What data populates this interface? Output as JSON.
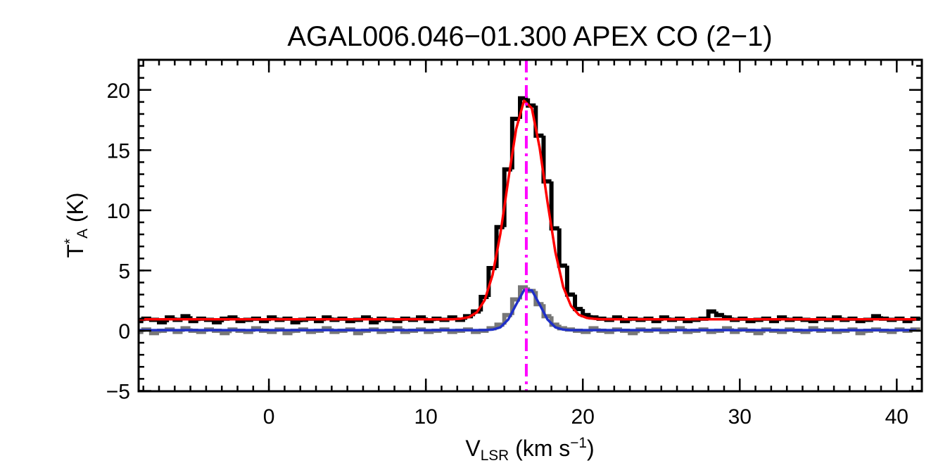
{
  "chart_data": {
    "type": "line",
    "title": "AGAL006.046−01.300  APEX CO (2−1)",
    "x_label": [
      {
        "text": "V"
      },
      {
        "text": "LSR",
        "shift": "sub"
      },
      {
        "text": " (km s"
      },
      {
        "text": "−1",
        "shift": "sup"
      },
      {
        "text": ")"
      }
    ],
    "y_label": [
      {
        "text": "T"
      },
      {
        "text": "*",
        "shift": "sup"
      },
      {
        "text": "A",
        "shift": "sub"
      },
      {
        "text": " (K)"
      }
    ],
    "xlim": [
      -8.3,
      41.6
    ],
    "ylim": [
      -5.03,
      22.5
    ],
    "xticks": [
      0,
      10,
      20,
      30,
      40
    ],
    "yticks": [
      {
        "value": -5,
        "label": "−5"
      },
      0,
      5,
      10,
      15,
      20
    ],
    "xminor_step": 1,
    "yminor_step": 1,
    "x": [
      -8.25,
      -7.75,
      -7.25,
      -6.75,
      -6.25,
      -5.75,
      -5.25,
      -4.75,
      -4.25,
      -3.75,
      -3.25,
      -2.75,
      -2.25,
      -1.75,
      -1.25,
      -0.75,
      -0.25,
      0.25,
      0.75,
      1.25,
      1.75,
      2.25,
      2.75,
      3.25,
      3.75,
      4.25,
      4.75,
      5.25,
      5.75,
      6.25,
      6.75,
      7.25,
      7.75,
      8.25,
      8.75,
      9.25,
      9.75,
      10.25,
      10.75,
      11.25,
      11.75,
      12.25,
      12.75,
      13.25,
      13.75,
      14.25,
      14.75,
      15.25,
      15.75,
      16.25,
      16.75,
      17.25,
      17.75,
      18.25,
      18.75,
      19.25,
      19.75,
      20.25,
      20.75,
      21.25,
      21.75,
      22.25,
      22.75,
      23.25,
      23.75,
      24.25,
      24.75,
      25.25,
      25.75,
      26.25,
      26.75,
      27.25,
      27.75,
      28.25,
      28.75,
      29.25,
      29.75,
      30.25,
      30.75,
      31.25,
      31.75,
      32.25,
      32.75,
      33.25,
      33.75,
      34.25,
      34.75,
      35.25,
      35.75,
      36.25,
      36.75,
      37.25,
      37.75,
      38.25,
      38.75,
      39.25,
      39.75,
      40.25,
      40.75,
      41.25
    ],
    "series": [
      {
        "color": "#777777",
        "style": "step",
        "values": [
          -0.1,
          0.1,
          -0.2,
          0.0,
          0.1,
          -0.1,
          0.2,
          0.0,
          -0.1,
          0.1,
          0.0,
          -0.2,
          0.1,
          0.0,
          -0.1,
          0.2,
          0.0,
          -0.1,
          0.1,
          -0.2,
          0.0,
          0.1,
          -0.1,
          0.0,
          0.2,
          -0.1,
          0.0,
          0.1,
          -0.2,
          0.0,
          0.1,
          -0.1,
          0.0,
          0.2,
          -0.1,
          0.0,
          0.1,
          -0.1,
          0.0,
          0.1,
          -0.1,
          0.0,
          0.1,
          -0.1,
          0.0,
          0.2,
          0.5,
          1.3,
          2.6,
          3.6,
          3.3,
          2.2,
          1.2,
          0.5,
          0.2,
          0.1,
          0.0,
          -0.1,
          0.2,
          0.0,
          -0.1,
          0.1,
          0.0,
          -0.2,
          0.1,
          0.0,
          0.1,
          -0.1,
          0.0,
          0.2,
          -0.1,
          0.0,
          0.1,
          -0.1,
          0.0,
          0.2,
          -0.1,
          0.1,
          0.0,
          -0.2,
          0.1,
          0.0,
          -0.1,
          0.1,
          0.0,
          -0.1,
          0.2,
          0.0,
          0.1,
          -0.1,
          0.0,
          0.1,
          -0.2,
          0.0,
          0.1,
          0.0,
          -0.1,
          0.1,
          0.0,
          0.1
        ]
      },
      {
        "color": "#000000",
        "style": "step",
        "values": [
          0.8,
          1.0,
          0.9,
          0.7,
          1.1,
          0.9,
          1.2,
          0.8,
          1.0,
          0.9,
          0.7,
          1.0,
          1.1,
          0.8,
          0.9,
          1.0,
          0.8,
          1.1,
          0.9,
          1.0,
          0.7,
          0.9,
          1.0,
          0.8,
          1.1,
          0.9,
          1.0,
          0.8,
          0.9,
          1.1,
          0.7,
          1.0,
          0.9,
          0.8,
          1.0,
          0.9,
          1.1,
          0.8,
          1.0,
          0.9,
          1.1,
          0.9,
          1.2,
          1.6,
          2.8,
          5.2,
          8.6,
          13.4,
          17.6,
          19.3,
          18.7,
          16.2,
          12.4,
          8.5,
          5.4,
          3.0,
          1.8,
          1.3,
          1.1,
          1.0,
          0.9,
          1.1,
          0.8,
          1.0,
          0.9,
          1.0,
          0.8,
          1.1,
          0.9,
          1.0,
          0.8,
          0.9,
          1.0,
          1.6,
          1.3,
          1.1,
          0.9,
          1.0,
          0.8,
          0.9,
          1.0,
          0.8,
          1.1,
          0.9,
          1.0,
          0.9,
          0.8,
          1.0,
          0.9,
          1.1,
          0.9,
          1.0,
          0.8,
          0.9,
          1.2,
          1.0,
          0.9,
          1.0,
          0.8,
          1.0
        ]
      },
      {
        "color": "#ff0000",
        "style": "smooth",
        "values": [
          0.95,
          0.95,
          0.95,
          0.95,
          0.95,
          0.95,
          0.95,
          0.95,
          0.95,
          0.95,
          0.95,
          0.95,
          0.95,
          0.95,
          0.95,
          0.95,
          0.95,
          0.95,
          0.95,
          0.95,
          0.95,
          0.95,
          0.95,
          0.95,
          0.95,
          0.95,
          0.95,
          0.95,
          0.95,
          0.95,
          0.95,
          0.95,
          0.95,
          0.95,
          0.95,
          0.95,
          0.95,
          0.95,
          0.95,
          0.95,
          0.95,
          1.0,
          1.13,
          1.53,
          2.54,
          4.63,
          8.07,
          12.52,
          16.74,
          19.1,
          18.48,
          15.19,
          10.67,
          6.53,
          3.64,
          2.05,
          1.32,
          1.06,
          0.98,
          0.95,
          0.95,
          0.95,
          0.95,
          0.95,
          0.95,
          0.95,
          0.95,
          0.95,
          0.95,
          0.95,
          0.95,
          0.95,
          0.95,
          0.95,
          0.95,
          0.95,
          0.95,
          0.95,
          0.95,
          0.95,
          0.95,
          0.95,
          0.95,
          0.95,
          0.95,
          0.95,
          0.95,
          0.95,
          0.95,
          0.95,
          0.95,
          0.95,
          0.95,
          0.95,
          0.95,
          0.95,
          0.95,
          0.95,
          0.95,
          0.95
        ]
      },
      {
        "color": "#1f2fc8",
        "style": "smooth",
        "values": [
          0.05,
          0.05,
          0.05,
          0.05,
          0.05,
          0.05,
          0.05,
          0.05,
          0.05,
          0.05,
          0.05,
          0.05,
          0.05,
          0.05,
          0.05,
          0.05,
          0.05,
          0.05,
          0.05,
          0.05,
          0.05,
          0.05,
          0.05,
          0.05,
          0.05,
          0.05,
          0.05,
          0.05,
          0.05,
          0.05,
          0.05,
          0.05,
          0.05,
          0.05,
          0.05,
          0.05,
          0.05,
          0.05,
          0.05,
          0.05,
          0.05,
          0.05,
          0.05,
          0.05,
          0.05,
          0.09,
          0.28,
          0.93,
          2.17,
          3.36,
          3.36,
          2.17,
          0.93,
          0.28,
          0.09,
          0.05,
          0.05,
          0.05,
          0.05,
          0.05,
          0.05,
          0.05,
          0.05,
          0.05,
          0.05,
          0.05,
          0.05,
          0.05,
          0.05,
          0.05,
          0.05,
          0.05,
          0.05,
          0.05,
          0.05,
          0.05,
          0.05,
          0.05,
          0.05,
          0.05,
          0.05,
          0.05,
          0.05,
          0.05,
          0.05,
          0.05,
          0.05,
          0.05,
          0.05,
          0.05,
          0.05,
          0.05,
          0.05,
          0.05,
          0.05,
          0.05,
          0.05,
          0.05,
          0.05,
          0.05
        ]
      }
    ],
    "vline": {
      "x": 16.4,
      "color": "#ff00ff"
    }
  }
}
